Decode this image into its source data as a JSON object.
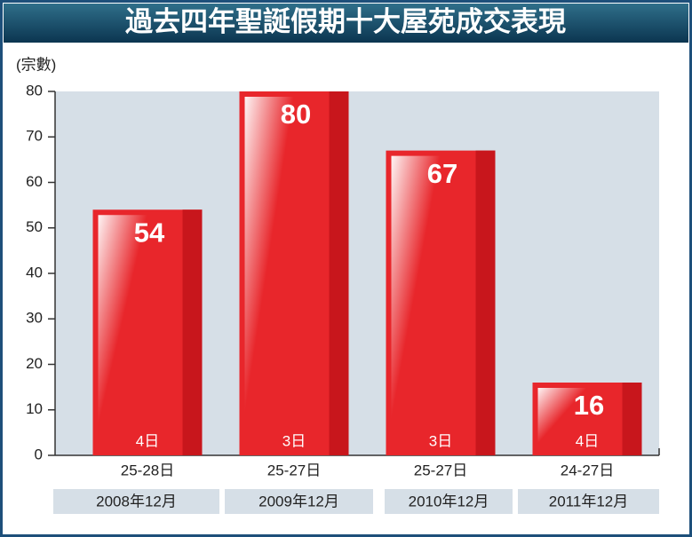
{
  "chart_data": {
    "type": "bar",
    "title": "過去四年聖誕假期十大屋苑成交表現",
    "y_label": "(宗數)",
    "categories": [
      "25-28日",
      "25-27日",
      "25-27日",
      "24-27日"
    ],
    "periods": [
      "2008年12月",
      "2009年12月",
      "2010年12月",
      "2011年12月"
    ],
    "day_counts": [
      "4日",
      "3日",
      "3日",
      "4日"
    ],
    "values": [
      54,
      80,
      67,
      16
    ],
    "color": "#e8262b",
    "ylim": [
      0,
      80
    ],
    "yticks": [
      0,
      10,
      20,
      30,
      40,
      50,
      60,
      70,
      80
    ],
    "grid": false
  }
}
